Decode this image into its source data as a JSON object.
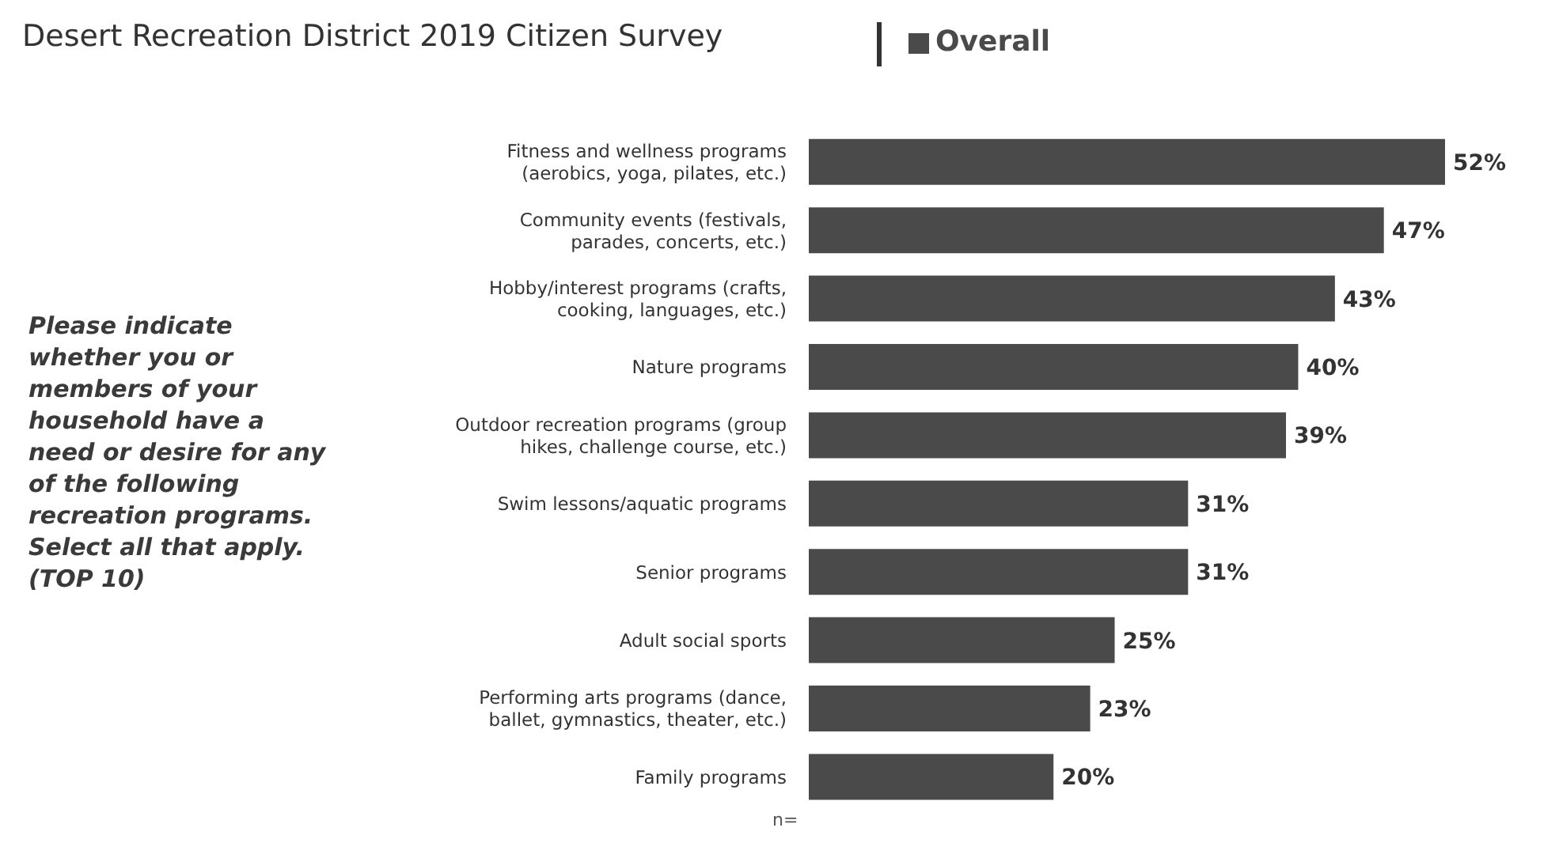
{
  "chart_data": {
    "type": "bar",
    "orientation": "horizontal",
    "title": "Desert Recreation District 2019 Citizen Survey",
    "categories": [
      "Fitness and wellness programs (aerobics, yoga, pilates, etc.)",
      "Community events (festivals, parades, concerts, etc.)",
      "Hobby/interest programs (crafts, cooking, languages, etc.)",
      "Nature programs",
      "Outdoor recreation programs (group hikes, challenge course, etc.)",
      "Swim lessons/aquatic programs",
      "Senior programs",
      "Adult social sports",
      "Performing arts programs (dance, ballet, gymnastics, theater, etc.)",
      "Family programs"
    ],
    "series": [
      {
        "name": "Overall",
        "color": "#4a4a4a",
        "values": [
          52,
          47,
          43,
          40,
          39,
          31,
          31,
          25,
          23,
          20
        ],
        "value_labels": [
          "52%",
          "47%",
          "43%",
          "40%",
          "39%",
          "31%",
          "31%",
          "25%",
          "23%",
          "20%"
        ]
      }
    ],
    "annotations": [
      "Please indicate whether you or members of your household have a need or desire for any of the following recreation programs. Select all that apply. (TOP 10)",
      "n="
    ],
    "legend": "top"
  }
}
